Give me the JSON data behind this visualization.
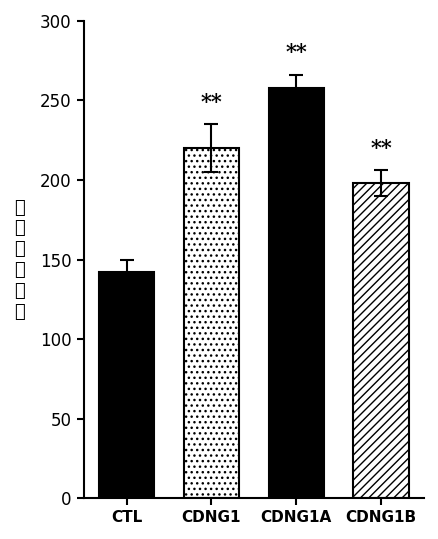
{
  "categories": [
    "CTL",
    "CDNG1",
    "CDNG1A",
    "CDNG1B"
  ],
  "values": [
    142,
    220,
    258,
    198
  ],
  "errors": [
    8,
    15,
    8,
    8
  ],
  "sig_labels": [
    "",
    "**",
    "**",
    "**"
  ],
  "ylabel_chars": [
    "心",
    "肌",
    "细",
    "胞",
    "计",
    "数"
  ],
  "ylim": [
    0,
    300
  ],
  "yticks": [
    0,
    50,
    100,
    150,
    200,
    250,
    300
  ],
  "bar_width": 0.65,
  "figsize": [
    4.38,
    5.39
  ],
  "dpi": 100,
  "background_color": "#ffffff",
  "edge_color": "#000000",
  "error_color": "#000000",
  "hatch_patterns": [
    "oo",
    "...",
    "",
    "////"
  ],
  "bar_facecolors": [
    "#000000",
    "#ffffff",
    "#000000",
    "#ffffff"
  ]
}
